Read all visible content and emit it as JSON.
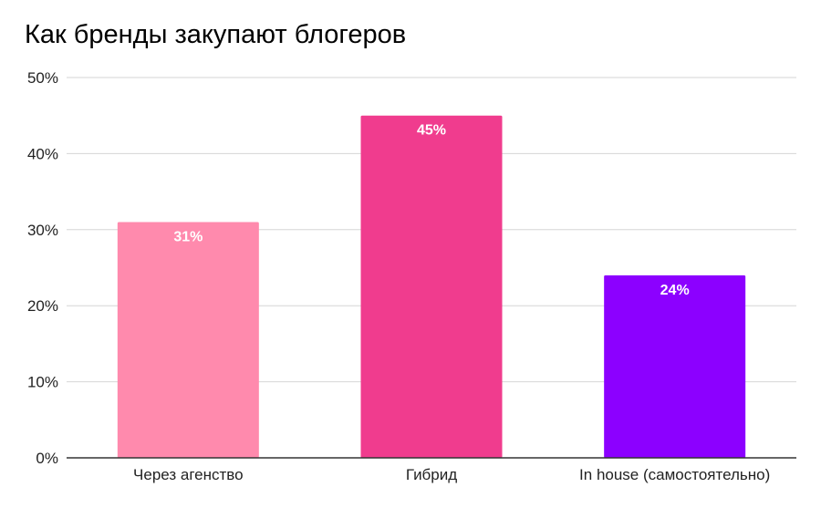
{
  "chart_data": {
    "type": "bar",
    "title": "Как бренды закупают блогеров",
    "xlabel": "",
    "ylabel": "",
    "categories": [
      "Через агенство",
      "Гибрид",
      "In house (самостоятельно)"
    ],
    "values": [
      0.31,
      0.45,
      0.24
    ],
    "data_labels": [
      "31%",
      "45%",
      "24%"
    ],
    "colors": [
      "#ff8aad",
      "#f03c8e",
      "#8c00ff"
    ],
    "ylim": [
      0,
      0.5
    ],
    "y_ticks": [
      0,
      0.1,
      0.2,
      0.3,
      0.4,
      0.5
    ],
    "y_tick_labels": [
      "0%",
      "10%",
      "20%",
      "30%",
      "40%",
      "50%"
    ],
    "grid": true,
    "legend": "none"
  }
}
